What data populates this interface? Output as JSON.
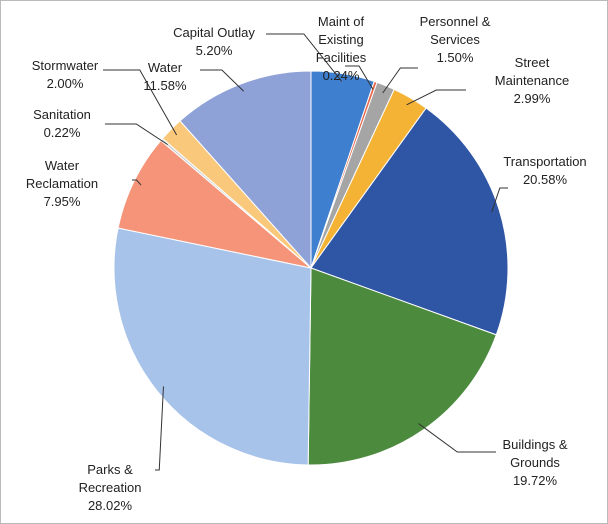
{
  "chart_data": {
    "type": "pie",
    "categories": [
      "Capital Outlay",
      "Maint of Existing Facilities",
      "Personnel & Services",
      "Street Maintenance",
      "Transportation",
      "Buildings & Grounds",
      "Parks & Recreation",
      "Water Reclamation",
      "Sanitation",
      "Stormwater",
      "Water"
    ],
    "values": [
      5.2,
      0.24,
      1.5,
      2.99,
      20.58,
      19.72,
      28.02,
      7.95,
      0.22,
      2.0,
      11.58
    ],
    "value_labels": [
      "5.20%",
      "0.24%",
      "1.50%",
      "2.99%",
      "20.58%",
      "19.72%",
      "28.02%",
      "7.95%",
      "0.22%",
      "2.00%",
      "11.58%"
    ],
    "colors": [
      "#3f7fcf",
      "#e8664a",
      "#a5a5a5",
      "#f5b335",
      "#2f56a5",
      "#4c8a3d",
      "#a8c3ea",
      "#f59479",
      "#d0d0d0",
      "#f9c87a",
      "#8fa2d8"
    ]
  }
}
